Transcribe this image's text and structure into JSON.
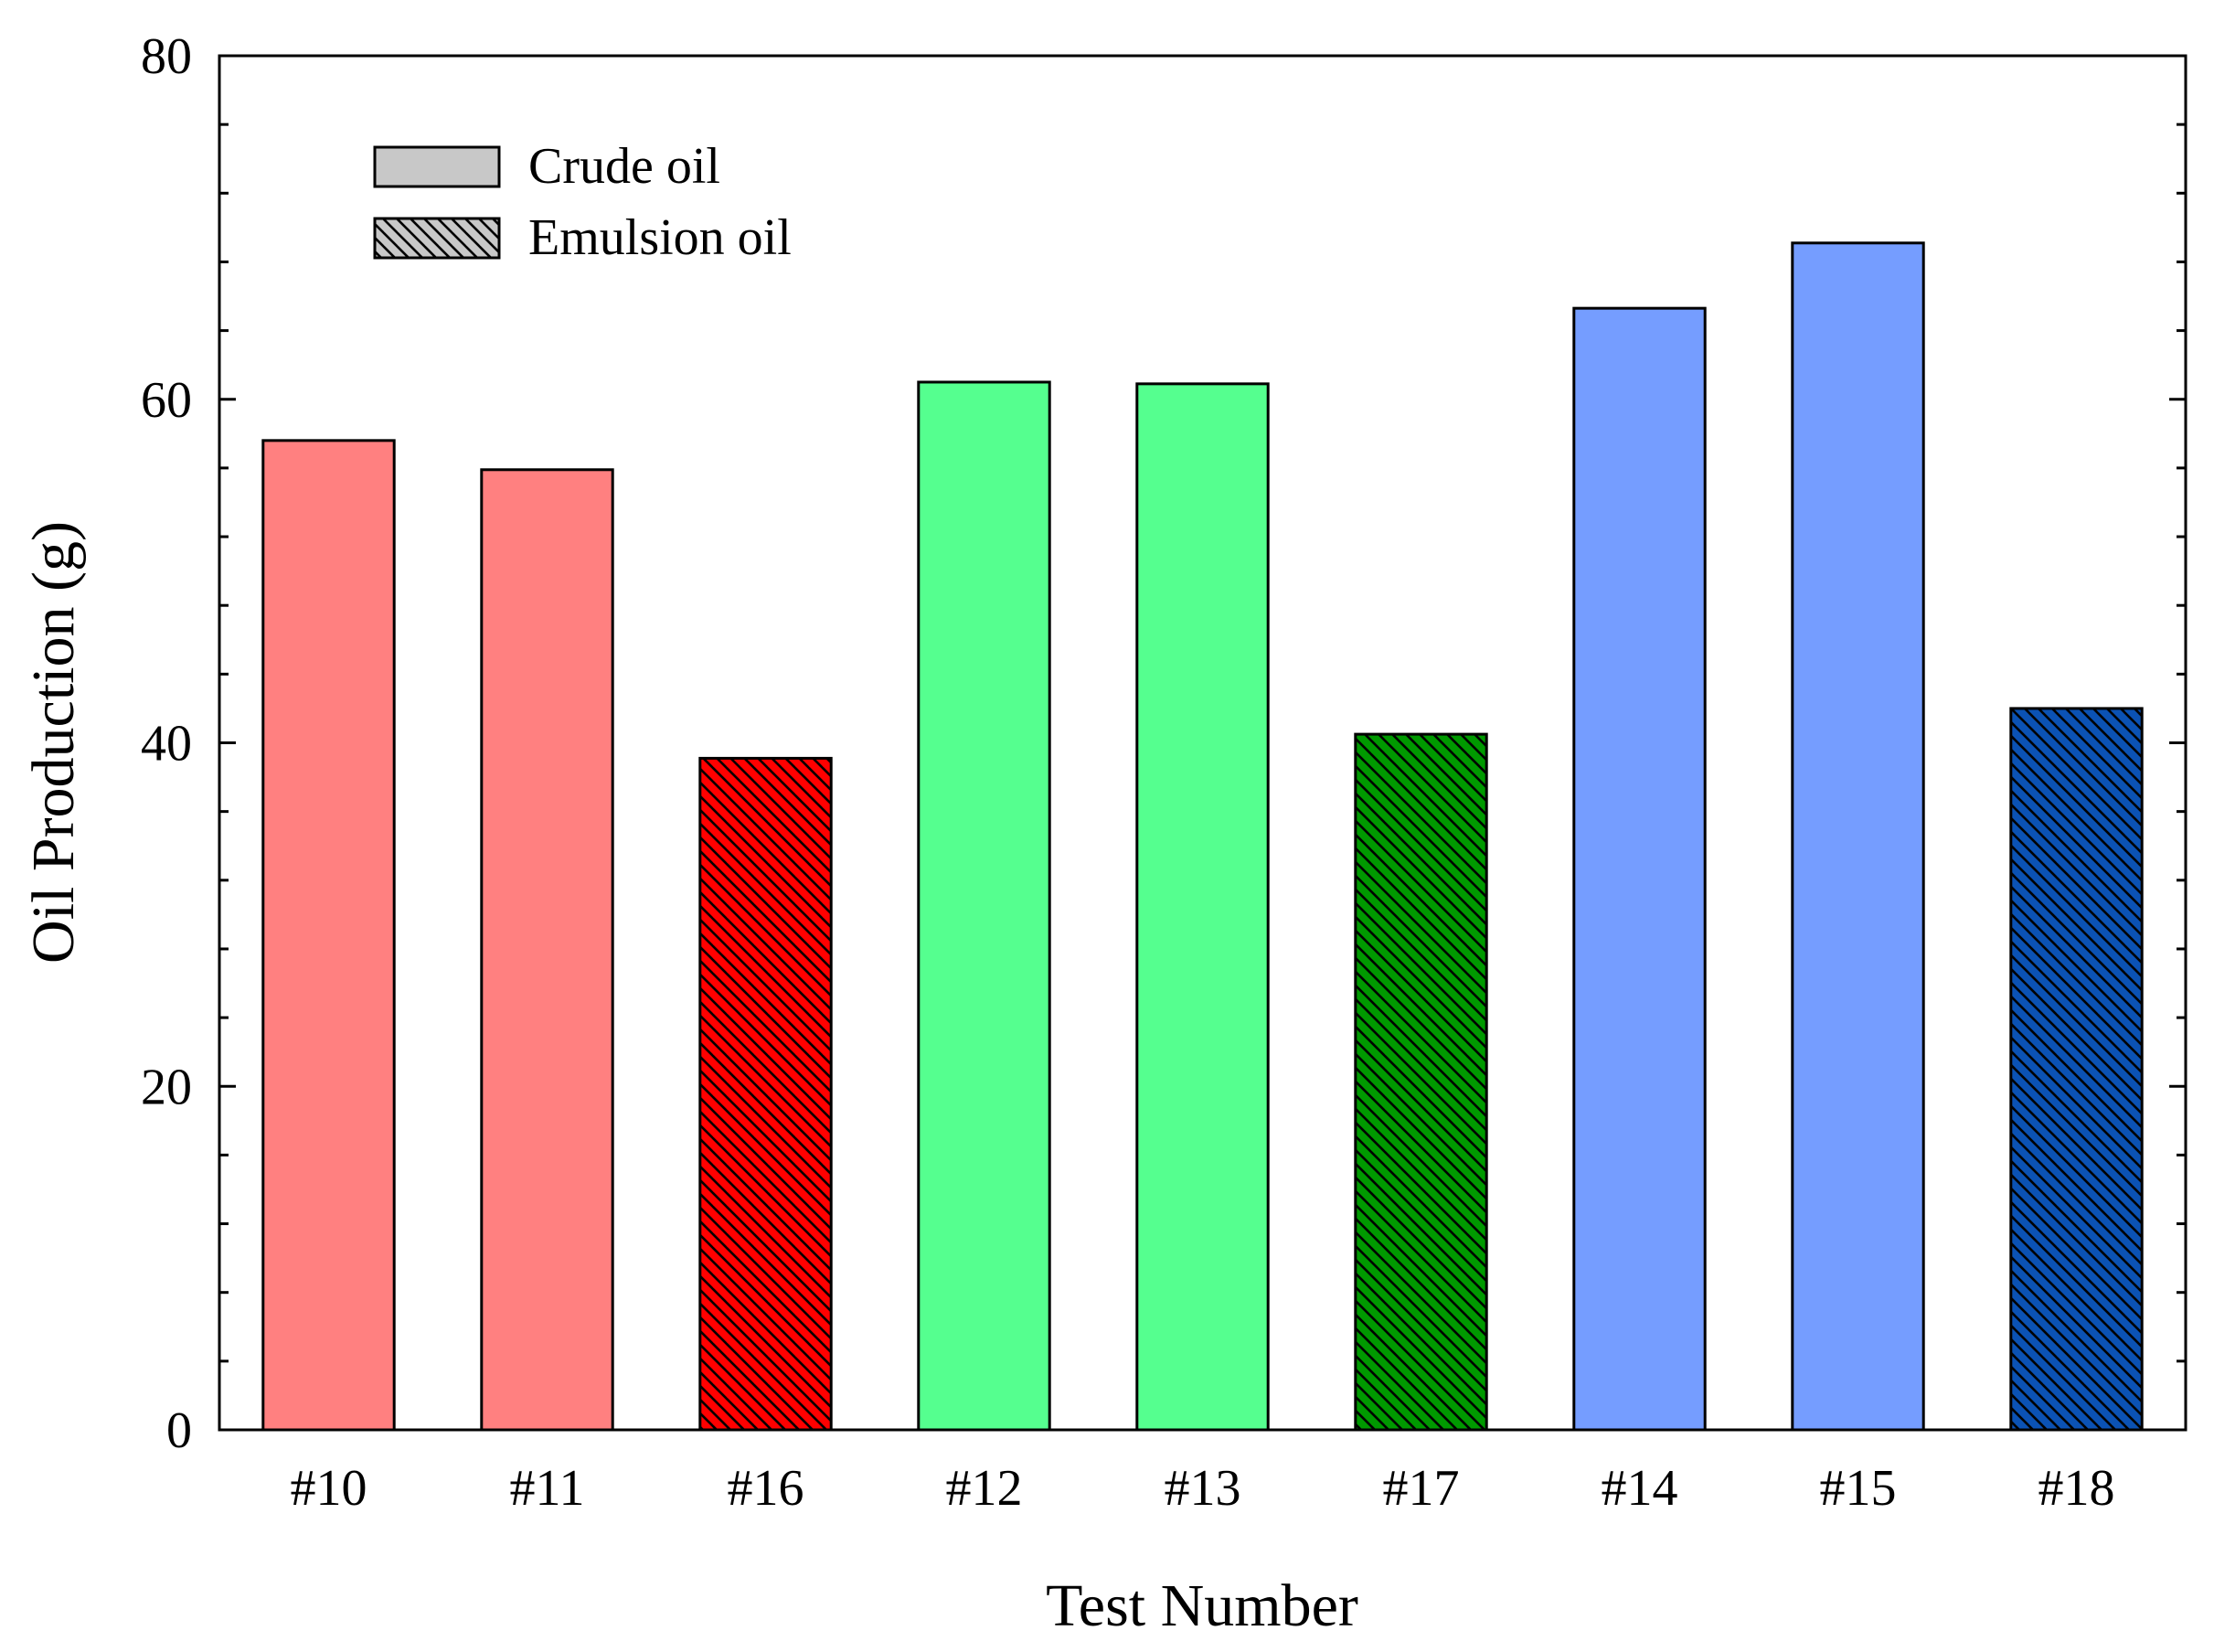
{
  "chart_data": {
    "type": "bar",
    "xlabel": "Test Number",
    "ylabel": "Oil Production (g)",
    "ylim": [
      0,
      80
    ],
    "y_ticks": [
      "0",
      "20",
      "40",
      "60",
      "80"
    ],
    "y_minor_step": 4,
    "grid": false,
    "legend_placement": "top-left",
    "categories": [
      "#10",
      "#11",
      "#16",
      "#12",
      "#13",
      "#17",
      "#14",
      "#15",
      "#18"
    ],
    "values": [
      57.6,
      55.9,
      39.1,
      61.0,
      60.9,
      40.5,
      65.3,
      69.1,
      42.0
    ],
    "oil_type": [
      "Crude oil",
      "Crude oil",
      "Emulsion oil",
      "Crude oil",
      "Crude oil",
      "Emulsion oil",
      "Crude oil",
      "Crude oil",
      "Emulsion oil"
    ],
    "bar_colors": [
      "#ff8080",
      "#ff8080",
      "#ff0000",
      "#55ff8f",
      "#55ff8f",
      "#009900",
      "#759dff",
      "#759dff",
      "#0b52b4"
    ],
    "legend": [
      {
        "label": "Crude oil",
        "pattern": "solid",
        "color": "#c8c8c8"
      },
      {
        "label": "Emulsion oil",
        "pattern": "hatched",
        "color": "#c8c8c8"
      }
    ]
  }
}
